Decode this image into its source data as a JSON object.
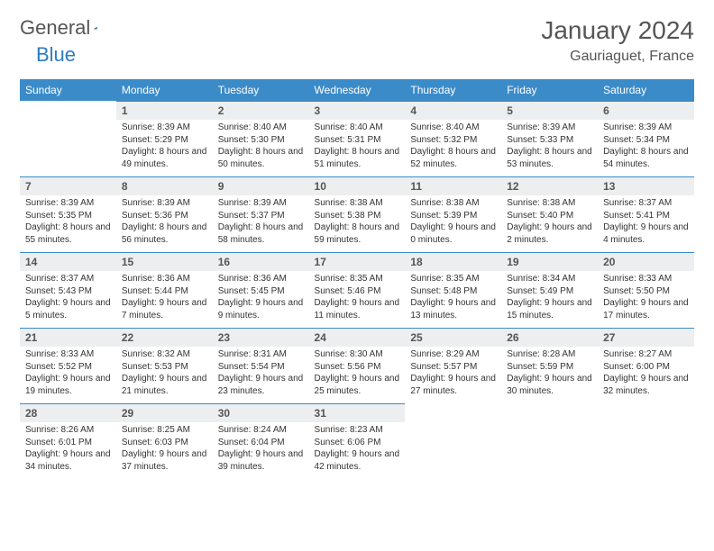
{
  "logo": {
    "word1": "General",
    "word2": "Blue"
  },
  "header": {
    "title": "January 2024",
    "location": "Gauriaguet, France"
  },
  "colors": {
    "header_bg": "#3b8bc9",
    "header_text": "#ffffff",
    "daynum_bg": "#eceeef",
    "daynum_border": "#3b8bc9",
    "logo_accent": "#2e7bbf"
  },
  "weekdays": [
    "Sunday",
    "Monday",
    "Tuesday",
    "Wednesday",
    "Thursday",
    "Friday",
    "Saturday"
  ],
  "calendar": {
    "start_weekday": 1,
    "days": [
      {
        "n": 1,
        "sunrise": "8:39 AM",
        "sunset": "5:29 PM",
        "dl": "8 hours and 49 minutes."
      },
      {
        "n": 2,
        "sunrise": "8:40 AM",
        "sunset": "5:30 PM",
        "dl": "8 hours and 50 minutes."
      },
      {
        "n": 3,
        "sunrise": "8:40 AM",
        "sunset": "5:31 PM",
        "dl": "8 hours and 51 minutes."
      },
      {
        "n": 4,
        "sunrise": "8:40 AM",
        "sunset": "5:32 PM",
        "dl": "8 hours and 52 minutes."
      },
      {
        "n": 5,
        "sunrise": "8:39 AM",
        "sunset": "5:33 PM",
        "dl": "8 hours and 53 minutes."
      },
      {
        "n": 6,
        "sunrise": "8:39 AM",
        "sunset": "5:34 PM",
        "dl": "8 hours and 54 minutes."
      },
      {
        "n": 7,
        "sunrise": "8:39 AM",
        "sunset": "5:35 PM",
        "dl": "8 hours and 55 minutes."
      },
      {
        "n": 8,
        "sunrise": "8:39 AM",
        "sunset": "5:36 PM",
        "dl": "8 hours and 56 minutes."
      },
      {
        "n": 9,
        "sunrise": "8:39 AM",
        "sunset": "5:37 PM",
        "dl": "8 hours and 58 minutes."
      },
      {
        "n": 10,
        "sunrise": "8:38 AM",
        "sunset": "5:38 PM",
        "dl": "8 hours and 59 minutes."
      },
      {
        "n": 11,
        "sunrise": "8:38 AM",
        "sunset": "5:39 PM",
        "dl": "9 hours and 0 minutes."
      },
      {
        "n": 12,
        "sunrise": "8:38 AM",
        "sunset": "5:40 PM",
        "dl": "9 hours and 2 minutes."
      },
      {
        "n": 13,
        "sunrise": "8:37 AM",
        "sunset": "5:41 PM",
        "dl": "9 hours and 4 minutes."
      },
      {
        "n": 14,
        "sunrise": "8:37 AM",
        "sunset": "5:43 PM",
        "dl": "9 hours and 5 minutes."
      },
      {
        "n": 15,
        "sunrise": "8:36 AM",
        "sunset": "5:44 PM",
        "dl": "9 hours and 7 minutes."
      },
      {
        "n": 16,
        "sunrise": "8:36 AM",
        "sunset": "5:45 PM",
        "dl": "9 hours and 9 minutes."
      },
      {
        "n": 17,
        "sunrise": "8:35 AM",
        "sunset": "5:46 PM",
        "dl": "9 hours and 11 minutes."
      },
      {
        "n": 18,
        "sunrise": "8:35 AM",
        "sunset": "5:48 PM",
        "dl": "9 hours and 13 minutes."
      },
      {
        "n": 19,
        "sunrise": "8:34 AM",
        "sunset": "5:49 PM",
        "dl": "9 hours and 15 minutes."
      },
      {
        "n": 20,
        "sunrise": "8:33 AM",
        "sunset": "5:50 PM",
        "dl": "9 hours and 17 minutes."
      },
      {
        "n": 21,
        "sunrise": "8:33 AM",
        "sunset": "5:52 PM",
        "dl": "9 hours and 19 minutes."
      },
      {
        "n": 22,
        "sunrise": "8:32 AM",
        "sunset": "5:53 PM",
        "dl": "9 hours and 21 minutes."
      },
      {
        "n": 23,
        "sunrise": "8:31 AM",
        "sunset": "5:54 PM",
        "dl": "9 hours and 23 minutes."
      },
      {
        "n": 24,
        "sunrise": "8:30 AM",
        "sunset": "5:56 PM",
        "dl": "9 hours and 25 minutes."
      },
      {
        "n": 25,
        "sunrise": "8:29 AM",
        "sunset": "5:57 PM",
        "dl": "9 hours and 27 minutes."
      },
      {
        "n": 26,
        "sunrise": "8:28 AM",
        "sunset": "5:59 PM",
        "dl": "9 hours and 30 minutes."
      },
      {
        "n": 27,
        "sunrise": "8:27 AM",
        "sunset": "6:00 PM",
        "dl": "9 hours and 32 minutes."
      },
      {
        "n": 28,
        "sunrise": "8:26 AM",
        "sunset": "6:01 PM",
        "dl": "9 hours and 34 minutes."
      },
      {
        "n": 29,
        "sunrise": "8:25 AM",
        "sunset": "6:03 PM",
        "dl": "9 hours and 37 minutes."
      },
      {
        "n": 30,
        "sunrise": "8:24 AM",
        "sunset": "6:04 PM",
        "dl": "9 hours and 39 minutes."
      },
      {
        "n": 31,
        "sunrise": "8:23 AM",
        "sunset": "6:06 PM",
        "dl": "9 hours and 42 minutes."
      }
    ]
  },
  "labels": {
    "sunrise": "Sunrise:",
    "sunset": "Sunset:",
    "daylight": "Daylight:"
  }
}
